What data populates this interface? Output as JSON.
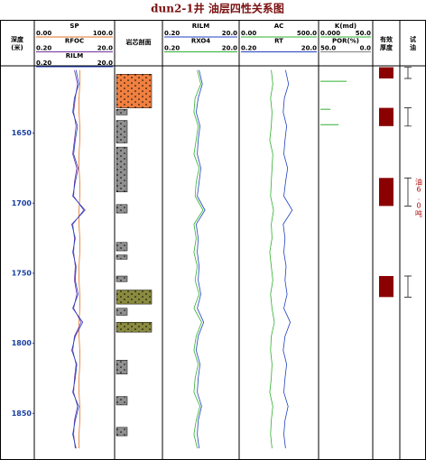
{
  "chart_data": {
    "type": "well_log",
    "title": "dun2-1井  油层四性关系图",
    "depth_label": [
      "深度",
      "(米)"
    ],
    "ylim": [
      1602,
      1882
    ],
    "yticks": [
      1650,
      1700,
      1750,
      1800,
      1850
    ],
    "depths": [
      1605,
      1615,
      1625,
      1635,
      1645,
      1655,
      1665,
      1675,
      1685,
      1695,
      1705,
      1715,
      1725,
      1735,
      1745,
      1755,
      1765,
      1775,
      1785,
      1795,
      1805,
      1815,
      1825,
      1835,
      1845,
      1855,
      1865,
      1875
    ],
    "tracks": [
      {
        "curves": [
          {
            "name": "SP",
            "color": "#e07020",
            "log": false,
            "xlim": [
              {
                "value": 0,
                "label": "0.00"
              },
              {
                "value": 100,
                "label": "100.0"
              }
            ],
            "values": [
              57,
              57,
              56,
              56,
              57,
              57,
              56,
              56,
              57,
              57,
              56,
              56,
              57,
              57,
              56,
              56,
              57,
              57,
              56,
              56,
              57,
              57,
              56,
              56,
              57,
              57,
              56,
              56
            ]
          },
          {
            "name": "RFOC",
            "color": "#7030a0",
            "log": true,
            "xlim": [
              {
                "value": 0.2,
                "label": "0.20"
              },
              {
                "value": 20,
                "label": "20.0"
              }
            ],
            "values": [
              2.0,
              2.4,
              2.1,
              1.9,
              2.2,
              2.0,
              1.8,
              2.3,
              2.0,
              1.9,
              3.5,
              1.8,
              2.0,
              1.9,
              2.1,
              2.0,
              2.3,
              1.9,
              3.0,
              2.0,
              1.8,
              2.2,
              2.0,
              1.9,
              2.4,
              2.0,
              1.9,
              2.1
            ]
          },
          {
            "name": "RILM",
            "color": "#2040c0",
            "log": true,
            "xlim": [
              {
                "value": 0.2,
                "label": "0.20"
              },
              {
                "value": 20,
                "label": "20.0"
              }
            ],
            "values": [
              2.2,
              2.6,
              2.0,
              1.8,
              2.4,
              2.1,
              1.9,
              2.5,
              2.1,
              1.8,
              3.8,
              1.7,
              2.1,
              1.8,
              2.2,
              2.1,
              2.5,
              1.8,
              3.3,
              2.1,
              1.7,
              2.3,
              2.1,
              1.8,
              2.6,
              2.1,
              1.8,
              2.2
            ]
          }
        ]
      },
      {
        "curves": [
          {
            "name": "RILM",
            "color": "#2040c0",
            "log": true,
            "xlim": [
              {
                "value": 0.2,
                "label": "0.20"
              },
              {
                "value": 20,
                "label": "20.0"
              }
            ],
            "values": [
              1.8,
              2.2,
              1.7,
              1.5,
              1.9,
              1.7,
              1.6,
              2.0,
              1.8,
              1.6,
              2.6,
              1.5,
              1.7,
              1.6,
              1.8,
              1.7,
              2.0,
              1.6,
              2.4,
              1.7,
              1.5,
              1.9,
              1.7,
              1.6,
              2.1,
              1.7,
              1.6,
              1.8
            ]
          },
          {
            "name": "RXO4",
            "color": "#30b030",
            "log": true,
            "xlim": [
              {
                "value": 0.2,
                "label": "0.20"
              },
              {
                "value": 20,
                "label": "20.0"
              }
            ],
            "values": [
              1.6,
              2.0,
              1.4,
              1.3,
              1.7,
              1.5,
              1.3,
              1.8,
              1.5,
              1.4,
              2.3,
              1.3,
              1.5,
              1.3,
              1.6,
              1.4,
              1.8,
              1.3,
              2.1,
              1.5,
              1.3,
              1.7,
              1.4,
              1.3,
              1.9,
              1.5,
              1.3,
              1.6
            ]
          }
        ]
      },
      {
        "curves": [
          {
            "name": "AC",
            "color": "#30b030",
            "log": false,
            "xlim": [
              {
                "value": 0,
                "label": "0.00"
              },
              {
                "value": 500,
                "label": "500.0"
              }
            ],
            "values": [
              200,
              210,
              195,
              205,
              200,
              190,
              210,
              205,
              200,
              195,
              215,
              200,
              205,
              190,
              200,
              210,
              195,
              205,
              220,
              200,
              195,
              205,
              200,
              190,
              210,
              200,
              195,
              205
            ]
          },
          {
            "name": "RT",
            "color": "#2040c0",
            "log": true,
            "xlim": [
              {
                "value": 0.2,
                "label": "0.20"
              },
              {
                "value": 20,
                "label": "20.0"
              }
            ],
            "values": [
              3.0,
              3.6,
              2.8,
              2.6,
              3.2,
              2.9,
              2.7,
              3.4,
              3.0,
              2.7,
              4.5,
              2.6,
              2.9,
              2.7,
              3.1,
              2.9,
              3.3,
              2.7,
              4.0,
              2.9,
              2.6,
              3.2,
              2.9,
              2.7,
              3.5,
              2.9,
              2.7,
              3.0
            ]
          }
        ]
      },
      {
        "curves": [
          {
            "name": "K(md)",
            "color": "#30b030",
            "log": false,
            "xlim": [
              {
                "value": 0,
                "label": "0.000"
              },
              {
                "value": 50,
                "label": "50.0"
              }
            ],
            "depths": [
              1613,
              1633,
              1644
            ],
            "values": [
              26,
              10,
              18
            ]
          },
          {
            "name": "POR(%)",
            "color": "#808080",
            "log": false,
            "xlim": [
              {
                "value": 50,
                "label": "50.0"
              },
              {
                "value": 0,
                "label": "0.0"
              }
            ]
          }
        ]
      }
    ],
    "lithology": {
      "title": "岩芯剖面",
      "intervals": [
        {
          "top": 1608,
          "bottom": 1632,
          "color": "#f08040"
        },
        {
          "top": 1633,
          "bottom": 1637,
          "color": "#909090"
        },
        {
          "top": 1641,
          "bottom": 1657,
          "color": "#909090"
        },
        {
          "top": 1660,
          "bottom": 1692,
          "color": "#909090"
        },
        {
          "top": 1701,
          "bottom": 1707,
          "color": "#909090"
        },
        {
          "top": 1728,
          "bottom": 1734,
          "color": "#909090"
        },
        {
          "top": 1737,
          "bottom": 1740,
          "color": "#909090"
        },
        {
          "top": 1752,
          "bottom": 1756,
          "color": "#909090"
        },
        {
          "top": 1762,
          "bottom": 1772,
          "color": "#8a8a40"
        },
        {
          "top": 1775,
          "bottom": 1780,
          "color": "#909090"
        },
        {
          "top": 1785,
          "bottom": 1792,
          "color": "#8a8a40"
        },
        {
          "top": 1812,
          "bottom": 1822,
          "color": "#909090"
        },
        {
          "top": 1838,
          "bottom": 1844,
          "color": "#909090"
        },
        {
          "top": 1860,
          "bottom": 1866,
          "color": "#909090"
        }
      ]
    },
    "thickness": {
      "title": [
        "有效",
        "厚度"
      ],
      "color": "#8b0000",
      "intervals": [
        {
          "top": 1603,
          "bottom": 1611
        },
        {
          "top": 1632,
          "bottom": 1645
        },
        {
          "top": 1682,
          "bottom": 1702
        },
        {
          "top": 1752,
          "bottom": 1767
        }
      ]
    },
    "oil_test": {
      "title": [
        "试",
        "油"
      ],
      "annotation": "油6.0吨",
      "annotation_interval": 2,
      "intervals": [
        {
          "top": 1603,
          "bottom": 1611
        },
        {
          "top": 1632,
          "bottom": 1645
        },
        {
          "top": 1682,
          "bottom": 1702
        },
        {
          "top": 1752,
          "bottom": 1767
        }
      ]
    }
  }
}
